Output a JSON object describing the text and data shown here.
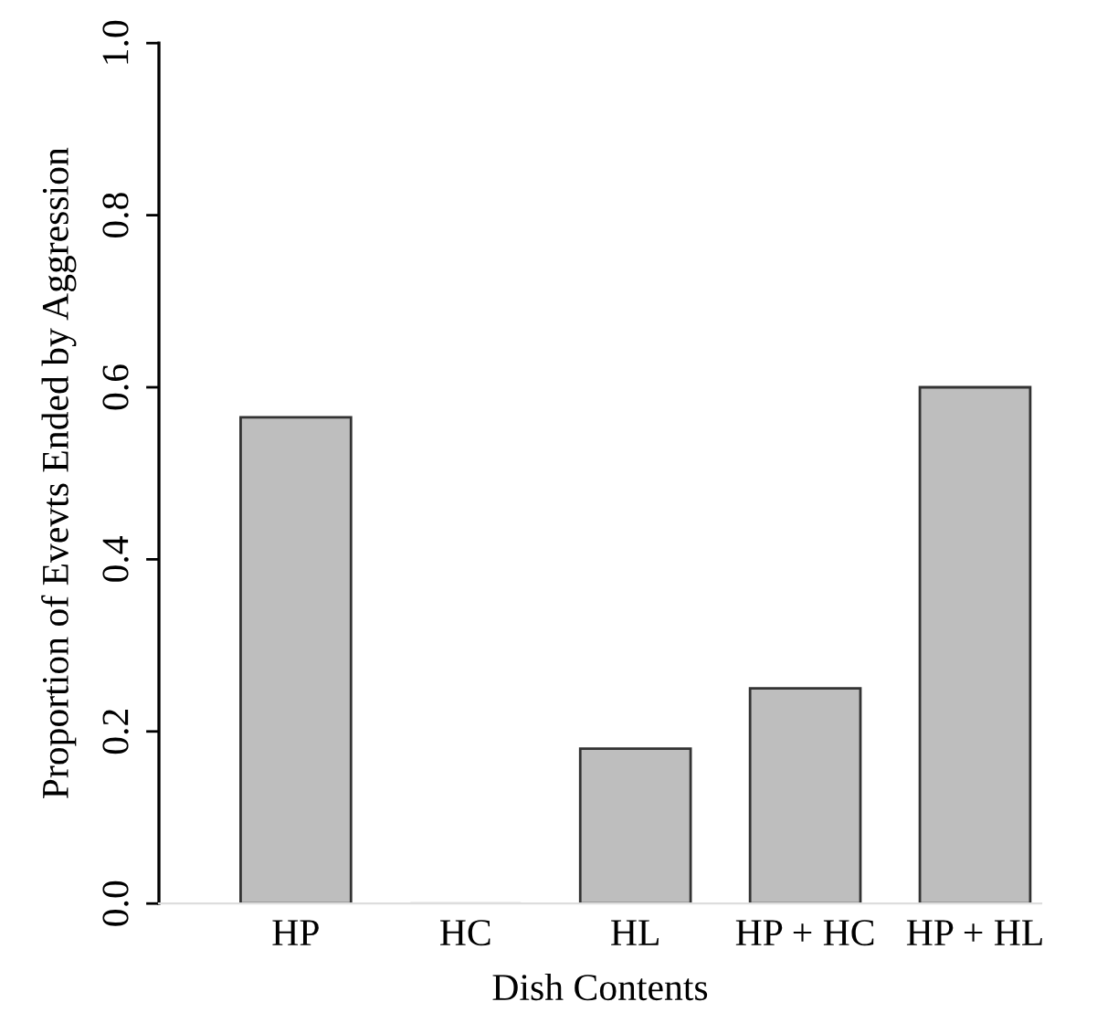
{
  "chart_data": {
    "type": "bar",
    "xlabel": "Dish Contents",
    "ylabel": "Proportion of Evevts Ended by Aggression",
    "categories": [
      "HP",
      "HC",
      "HL",
      "HP + HC",
      "HP + HL"
    ],
    "values": [
      0.565,
      0,
      0.18,
      0.25,
      0.6
    ],
    "color": "#bebebe",
    "ylim": [
      0,
      1
    ],
    "yticks": [
      {
        "value": 0,
        "label": "0.0"
      },
      0.2,
      0.4,
      0.6,
      0.8,
      {
        "value": 1,
        "label": "1.0"
      }
    ],
    "grid": false
  }
}
